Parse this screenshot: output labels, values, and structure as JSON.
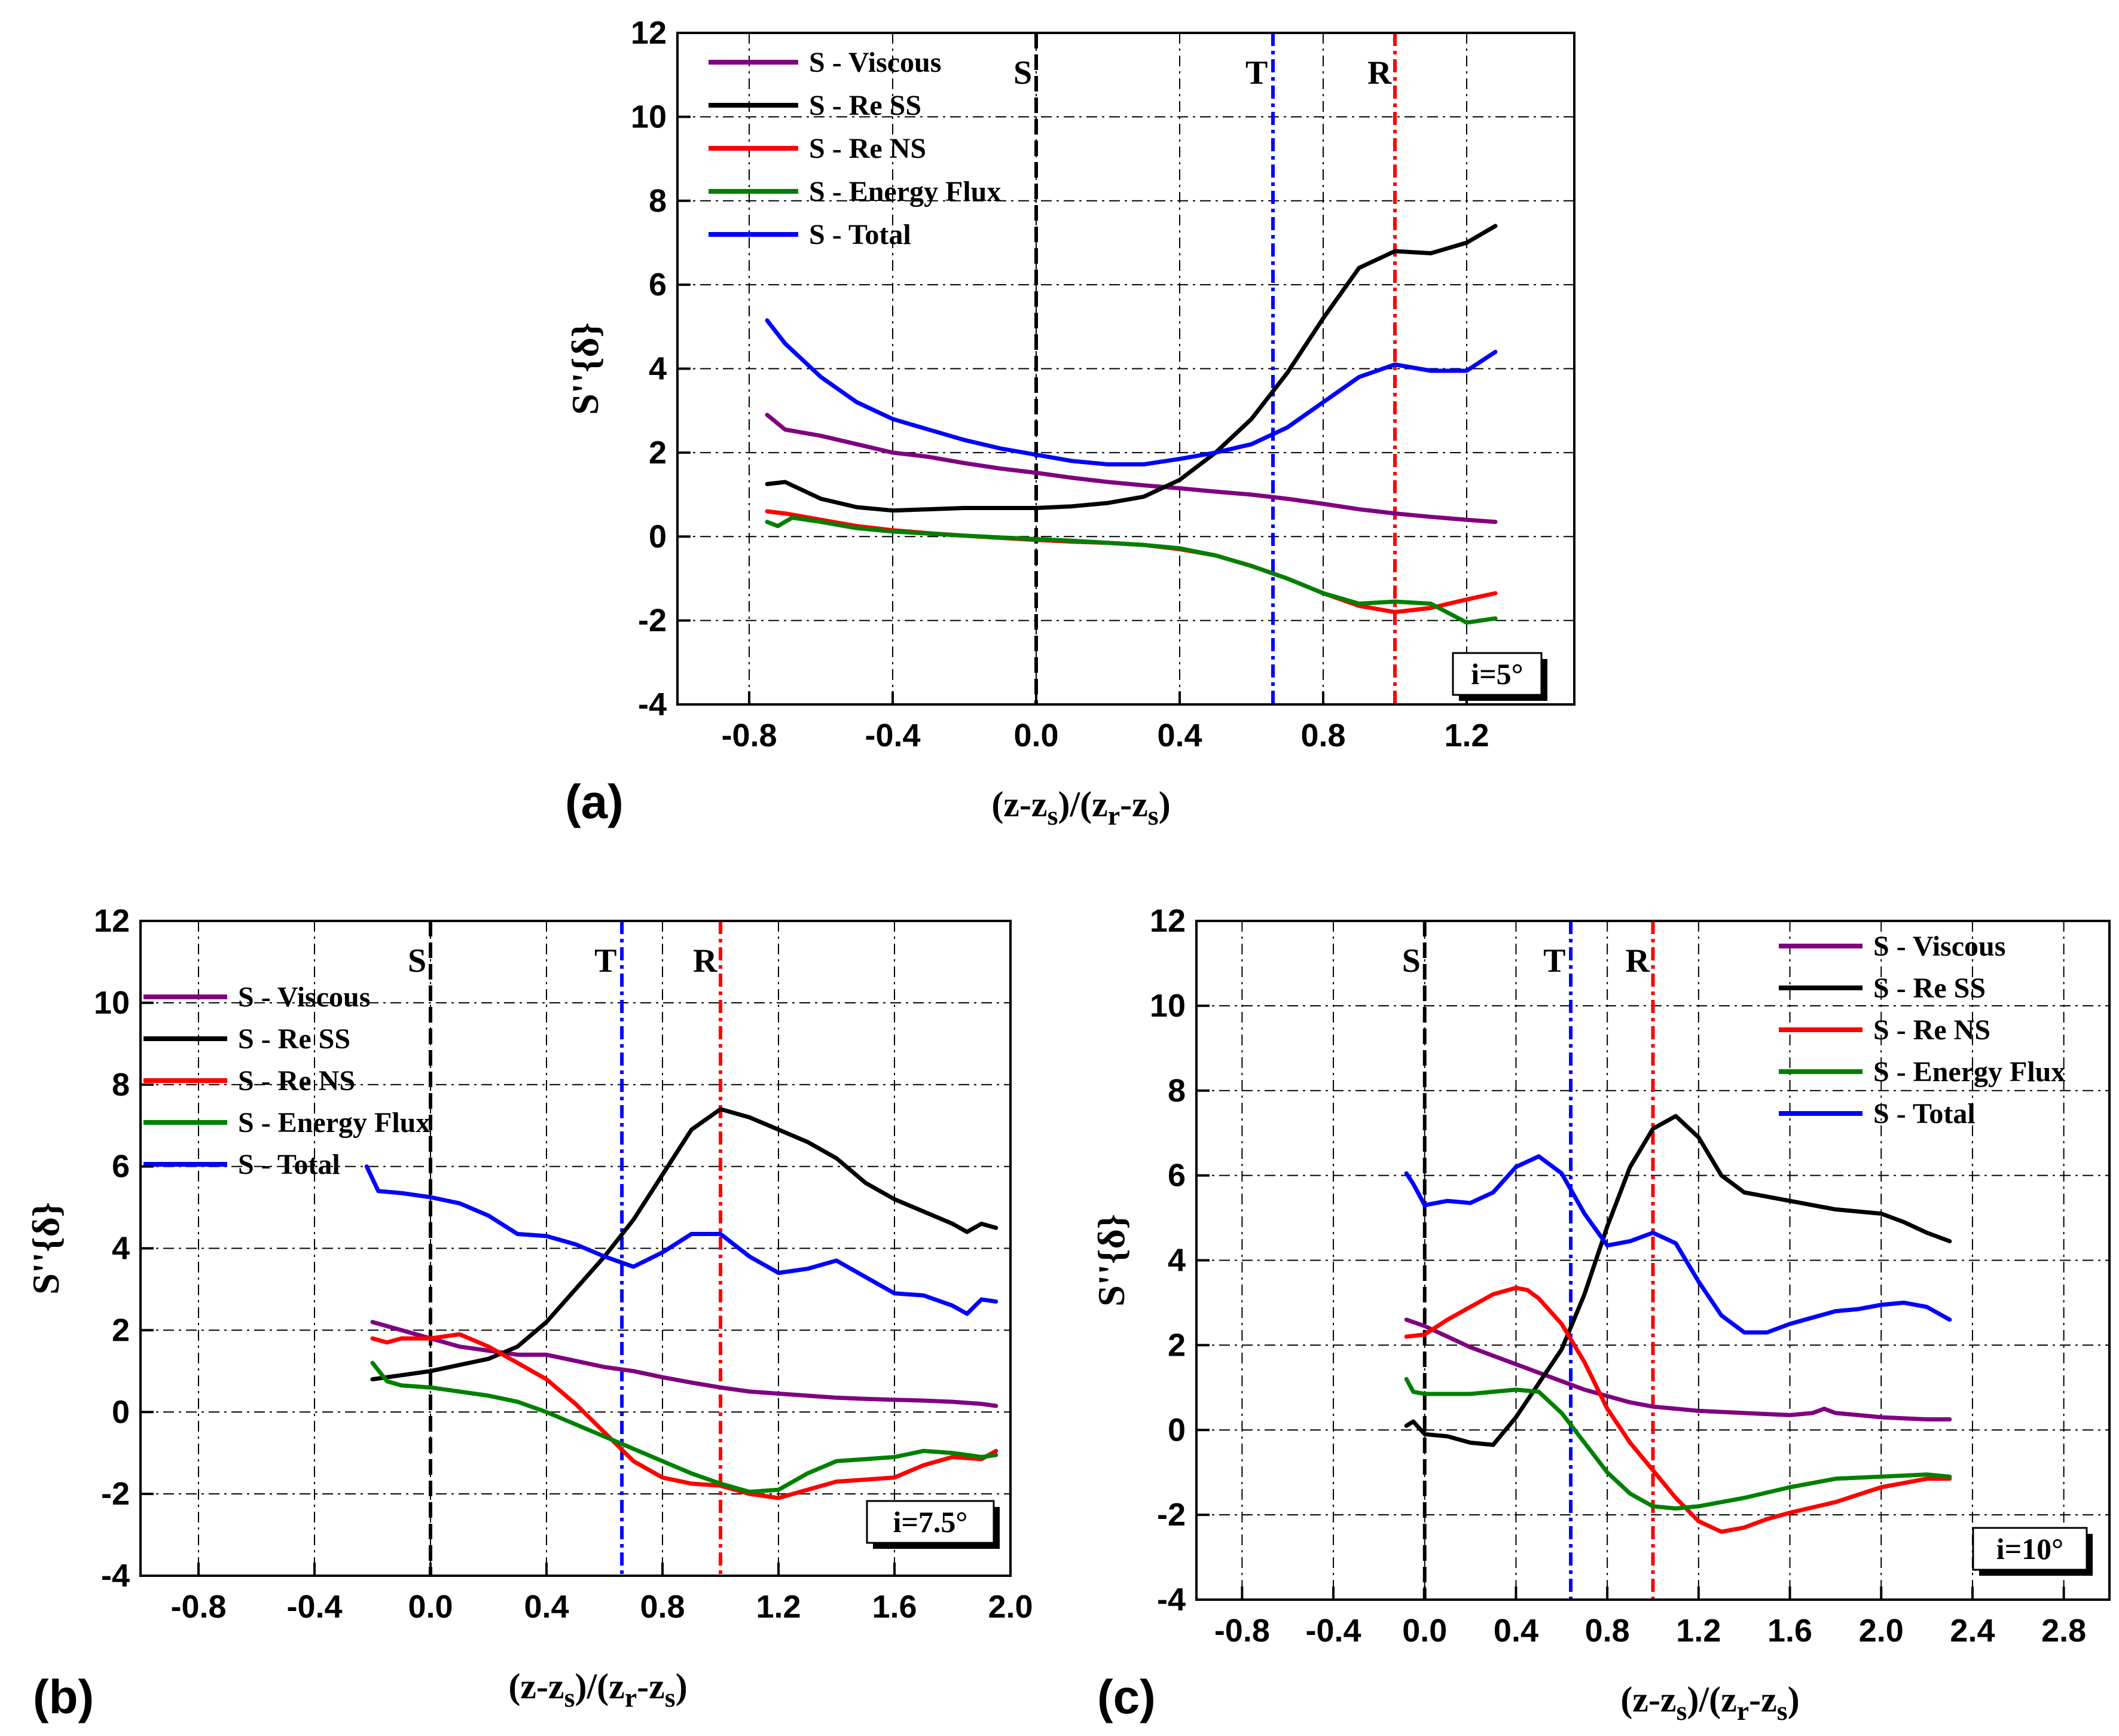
{
  "figure": {
    "colors": {
      "viscous": "#800080",
      "re_ss": "#000000",
      "re_ns": "#ff0000",
      "energy_flux": "#008000",
      "total": "#0000ff",
      "marker_s": "#000000",
      "marker_t": "#0000ff",
      "marker_r": "#ff0000"
    }
  },
  "chart_data": [
    {
      "panel_label": "(a)",
      "type": "line",
      "ylabel": "S''{δ}",
      "xlabel_parts": [
        "(z-z",
        "s",
        ")/(z",
        "r",
        "-z",
        "s",
        ")"
      ],
      "incidence": "i=5°",
      "xlim": [
        -1.0,
        1.5
      ],
      "ylim": [
        -4,
        12
      ],
      "xticks": [
        -0.8,
        -0.4,
        0.0,
        0.4,
        0.8,
        1.2
      ],
      "xtick_labels": [
        "-0.8",
        "-0.4",
        "0.0",
        "0.4",
        "0.8",
        "1.2"
      ],
      "yticks": [
        -4,
        -2,
        0,
        2,
        4,
        6,
        8,
        10,
        12
      ],
      "ytick_labels": [
        "-4",
        "-2",
        "0",
        "2",
        "4",
        "6",
        "8",
        "10",
        "12"
      ],
      "markers": [
        {
          "label": "S",
          "x": 0.0,
          "color_key": "marker_s"
        },
        {
          "label": "T",
          "x": 0.66,
          "color_key": "marker_t"
        },
        {
          "label": "R",
          "x": 1.0,
          "color_key": "marker_r"
        }
      ],
      "legend_position": "top-left",
      "series": [
        {
          "name": "S - Viscous",
          "color_key": "viscous",
          "x": [
            -0.75,
            -0.7,
            -0.6,
            -0.5,
            -0.4,
            -0.3,
            -0.2,
            -0.1,
            0.0,
            0.1,
            0.2,
            0.3,
            0.4,
            0.5,
            0.6,
            0.7,
            0.8,
            0.9,
            1.0,
            1.1,
            1.2,
            1.28
          ],
          "y": [
            2.9,
            2.55,
            2.4,
            2.2,
            2.0,
            1.9,
            1.75,
            1.62,
            1.52,
            1.4,
            1.3,
            1.22,
            1.15,
            1.07,
            1.0,
            0.9,
            0.78,
            0.65,
            0.55,
            0.47,
            0.4,
            0.35
          ]
        },
        {
          "name": "S - Re SS",
          "color_key": "re_ss",
          "x": [
            -0.75,
            -0.7,
            -0.6,
            -0.5,
            -0.4,
            -0.3,
            -0.2,
            -0.1,
            0.0,
            0.1,
            0.2,
            0.3,
            0.4,
            0.5,
            0.6,
            0.7,
            0.8,
            0.9,
            1.0,
            1.1,
            1.2,
            1.28
          ],
          "y": [
            1.25,
            1.3,
            0.9,
            0.7,
            0.62,
            0.65,
            0.68,
            0.68,
            0.68,
            0.72,
            0.8,
            0.95,
            1.35,
            2.0,
            2.8,
            3.9,
            5.2,
            6.4,
            6.8,
            6.75,
            7.0,
            7.4
          ]
        },
        {
          "name": "S - Re NS",
          "color_key": "re_ns",
          "x": [
            -0.75,
            -0.7,
            -0.6,
            -0.5,
            -0.4,
            -0.3,
            -0.2,
            -0.1,
            0.0,
            0.1,
            0.2,
            0.3,
            0.4,
            0.5,
            0.6,
            0.7,
            0.8,
            0.9,
            1.0,
            1.1,
            1.2,
            1.28
          ],
          "y": [
            0.6,
            0.55,
            0.4,
            0.25,
            0.15,
            0.08,
            0.02,
            -0.03,
            -0.08,
            -0.12,
            -0.15,
            -0.2,
            -0.3,
            -0.45,
            -0.7,
            -1.0,
            -1.35,
            -1.65,
            -1.8,
            -1.7,
            -1.5,
            -1.35
          ]
        },
        {
          "name": "S - Energy Flux",
          "color_key": "energy_flux",
          "x": [
            -0.75,
            -0.72,
            -0.68,
            -0.6,
            -0.5,
            -0.4,
            -0.3,
            -0.2,
            -0.1,
            0.0,
            0.1,
            0.2,
            0.3,
            0.4,
            0.5,
            0.6,
            0.7,
            0.8,
            0.9,
            1.0,
            1.1,
            1.2,
            1.28
          ],
          "y": [
            0.35,
            0.25,
            0.45,
            0.35,
            0.2,
            0.12,
            0.07,
            0.02,
            -0.02,
            -0.06,
            -0.1,
            -0.15,
            -0.2,
            -0.28,
            -0.45,
            -0.7,
            -1.0,
            -1.35,
            -1.6,
            -1.55,
            -1.6,
            -2.05,
            -1.95
          ]
        },
        {
          "name": "S - Total",
          "color_key": "total",
          "x": [
            -0.75,
            -0.7,
            -0.6,
            -0.5,
            -0.4,
            -0.3,
            -0.2,
            -0.1,
            0.0,
            0.1,
            0.2,
            0.3,
            0.4,
            0.5,
            0.6,
            0.7,
            0.8,
            0.9,
            1.0,
            1.1,
            1.2,
            1.28
          ],
          "y": [
            5.15,
            4.6,
            3.8,
            3.2,
            2.8,
            2.55,
            2.3,
            2.1,
            1.95,
            1.8,
            1.72,
            1.72,
            1.85,
            2.0,
            2.2,
            2.6,
            3.2,
            3.8,
            4.1,
            3.95,
            3.95,
            4.4
          ]
        }
      ]
    },
    {
      "panel_label": "(b)",
      "type": "line",
      "ylabel": "S''{δ}",
      "xlabel_parts": [
        "(z-z",
        "s",
        ")/(z",
        "r",
        "-z",
        "s",
        ")"
      ],
      "incidence": "i=7.5°",
      "xlim": [
        -1.0,
        2.0
      ],
      "ylim": [
        -4,
        12
      ],
      "xticks": [
        -0.8,
        -0.4,
        0.0,
        0.4,
        0.8,
        1.2,
        1.6,
        2.0
      ],
      "xtick_labels": [
        "-0.8",
        "-0.4",
        "0.0",
        "0.4",
        "0.8",
        "1.2",
        "1.6",
        "2.0"
      ],
      "yticks": [
        -4,
        -2,
        0,
        2,
        4,
        6,
        8,
        10,
        12
      ],
      "ytick_labels": [
        "-4",
        "-2",
        "0",
        "2",
        "4",
        "6",
        "8",
        "10",
        "12"
      ],
      "markers": [
        {
          "label": "S",
          "x": 0.0,
          "color_key": "marker_s"
        },
        {
          "label": "T",
          "x": 0.66,
          "color_key": "marker_t"
        },
        {
          "label": "R",
          "x": 1.0,
          "color_key": "marker_r"
        }
      ],
      "legend_position": "center-left",
      "series": [
        {
          "name": "S - Viscous",
          "color_key": "viscous",
          "x": [
            -0.2,
            -0.1,
            0.0,
            0.1,
            0.2,
            0.3,
            0.4,
            0.5,
            0.6,
            0.7,
            0.8,
            0.9,
            1.0,
            1.1,
            1.2,
            1.3,
            1.4,
            1.5,
            1.6,
            1.7,
            1.8,
            1.9,
            1.95
          ],
          "y": [
            2.2,
            2.0,
            1.8,
            1.6,
            1.5,
            1.4,
            1.4,
            1.25,
            1.1,
            1.0,
            0.85,
            0.72,
            0.6,
            0.5,
            0.45,
            0.4,
            0.35,
            0.32,
            0.3,
            0.28,
            0.25,
            0.2,
            0.15
          ]
        },
        {
          "name": "S - Re SS",
          "color_key": "re_ss",
          "x": [
            -0.2,
            -0.1,
            0.0,
            0.1,
            0.2,
            0.3,
            0.4,
            0.5,
            0.6,
            0.7,
            0.8,
            0.9,
            1.0,
            1.1,
            1.2,
            1.3,
            1.4,
            1.5,
            1.6,
            1.7,
            1.8,
            1.85,
            1.9,
            1.95
          ],
          "y": [
            0.8,
            0.9,
            1.0,
            1.15,
            1.3,
            1.6,
            2.2,
            3.0,
            3.8,
            4.7,
            5.8,
            6.9,
            7.4,
            7.2,
            6.9,
            6.6,
            6.2,
            5.6,
            5.2,
            4.9,
            4.6,
            4.4,
            4.6,
            4.5
          ]
        },
        {
          "name": "S - Re NS",
          "color_key": "re_ns",
          "x": [
            -0.2,
            -0.15,
            -0.1,
            0.0,
            0.1,
            0.2,
            0.3,
            0.4,
            0.5,
            0.6,
            0.7,
            0.8,
            0.9,
            1.0,
            1.1,
            1.2,
            1.3,
            1.4,
            1.5,
            1.6,
            1.7,
            1.8,
            1.9,
            1.95
          ],
          "y": [
            1.8,
            1.7,
            1.8,
            1.8,
            1.9,
            1.6,
            1.2,
            0.8,
            0.2,
            -0.5,
            -1.2,
            -1.6,
            -1.75,
            -1.8,
            -2.0,
            -2.1,
            -1.9,
            -1.7,
            -1.65,
            -1.6,
            -1.3,
            -1.1,
            -1.15,
            -0.95
          ]
        },
        {
          "name": "S - Energy Flux",
          "color_key": "energy_flux",
          "x": [
            -0.2,
            -0.15,
            -0.1,
            0.0,
            0.1,
            0.2,
            0.3,
            0.4,
            0.5,
            0.6,
            0.7,
            0.8,
            0.9,
            1.0,
            1.1,
            1.2,
            1.3,
            1.4,
            1.5,
            1.6,
            1.7,
            1.8,
            1.9,
            1.95
          ],
          "y": [
            1.2,
            0.75,
            0.65,
            0.6,
            0.5,
            0.4,
            0.25,
            0.0,
            -0.3,
            -0.6,
            -0.9,
            -1.2,
            -1.5,
            -1.75,
            -1.95,
            -1.9,
            -1.5,
            -1.2,
            -1.15,
            -1.1,
            -0.95,
            -1.0,
            -1.1,
            -1.05
          ]
        },
        {
          "name": "S - Total",
          "color_key": "total",
          "x": [
            -0.22,
            -0.18,
            -0.1,
            0.0,
            0.1,
            0.2,
            0.3,
            0.4,
            0.5,
            0.6,
            0.7,
            0.8,
            0.9,
            1.0,
            1.1,
            1.2,
            1.3,
            1.4,
            1.5,
            1.6,
            1.7,
            1.8,
            1.85,
            1.9,
            1.95
          ],
          "y": [
            6.0,
            5.4,
            5.35,
            5.25,
            5.1,
            4.8,
            4.35,
            4.3,
            4.1,
            3.8,
            3.55,
            3.9,
            4.35,
            4.35,
            3.8,
            3.4,
            3.5,
            3.7,
            3.3,
            2.9,
            2.85,
            2.6,
            2.4,
            2.75,
            2.7
          ]
        }
      ]
    },
    {
      "panel_label": "(c)",
      "type": "line",
      "ylabel": "S''{δ}",
      "xlabel_parts": [
        "(z-z",
        "s",
        ")/(z",
        "r",
        "-z",
        "s",
        ")"
      ],
      "incidence": "i=10°",
      "xlim": [
        -1.0,
        3.0
      ],
      "ylim": [
        -4,
        12
      ],
      "xticks": [
        -0.8,
        -0.4,
        0.0,
        0.4,
        0.8,
        1.2,
        1.6,
        2.0,
        2.4,
        2.8
      ],
      "xtick_labels": [
        "-0.8",
        "-0.4",
        "0.0",
        "0.4",
        "0.8",
        "1.2",
        "1.6",
        "2.0",
        "2.4",
        "2.8"
      ],
      "yticks": [
        -4,
        -2,
        0,
        2,
        4,
        6,
        8,
        10,
        12
      ],
      "ytick_labels": [
        "-4",
        "-2",
        "0",
        "2",
        "4",
        "6",
        "8",
        "10",
        "12"
      ],
      "markers": [
        {
          "label": "S",
          "x": 0.0,
          "color_key": "marker_s"
        },
        {
          "label": "T",
          "x": 0.64,
          "color_key": "marker_t"
        },
        {
          "label": "R",
          "x": 1.0,
          "color_key": "marker_r"
        }
      ],
      "legend_position": "top-right",
      "series": [
        {
          "name": "S - Viscous",
          "color_key": "viscous",
          "x": [
            -0.08,
            0.0,
            0.1,
            0.2,
            0.3,
            0.4,
            0.5,
            0.6,
            0.7,
            0.8,
            0.9,
            1.0,
            1.2,
            1.4,
            1.6,
            1.7,
            1.75,
            1.8,
            1.9,
            2.0,
            2.2,
            2.3
          ],
          "y": [
            2.6,
            2.45,
            2.2,
            1.95,
            1.75,
            1.55,
            1.35,
            1.15,
            0.95,
            0.8,
            0.65,
            0.55,
            0.45,
            0.4,
            0.35,
            0.4,
            0.5,
            0.4,
            0.35,
            0.3,
            0.25,
            0.25
          ]
        },
        {
          "name": "S - Re SS",
          "color_key": "re_ss",
          "x": [
            -0.08,
            -0.05,
            0.0,
            0.1,
            0.2,
            0.3,
            0.4,
            0.5,
            0.6,
            0.7,
            0.8,
            0.9,
            1.0,
            1.1,
            1.2,
            1.3,
            1.4,
            1.6,
            1.8,
            2.0,
            2.1,
            2.2,
            2.3
          ],
          "y": [
            0.1,
            0.2,
            -0.1,
            -0.15,
            -0.3,
            -0.35,
            0.3,
            1.1,
            1.9,
            3.2,
            4.8,
            6.2,
            7.1,
            7.4,
            6.9,
            6.0,
            5.6,
            5.4,
            5.2,
            5.1,
            4.9,
            4.65,
            4.45
          ]
        },
        {
          "name": "S - Re NS",
          "color_key": "re_ns",
          "x": [
            -0.08,
            0.0,
            0.1,
            0.2,
            0.3,
            0.4,
            0.45,
            0.5,
            0.6,
            0.7,
            0.8,
            0.9,
            1.0,
            1.1,
            1.2,
            1.3,
            1.4,
            1.5,
            1.6,
            1.8,
            2.0,
            2.2,
            2.3
          ],
          "y": [
            2.2,
            2.25,
            2.6,
            2.9,
            3.2,
            3.35,
            3.3,
            3.1,
            2.5,
            1.6,
            0.5,
            -0.3,
            -0.95,
            -1.6,
            -2.15,
            -2.4,
            -2.3,
            -2.1,
            -1.95,
            -1.7,
            -1.35,
            -1.15,
            -1.15
          ]
        },
        {
          "name": "S - Energy Flux",
          "color_key": "energy_flux",
          "x": [
            -0.08,
            -0.05,
            0.0,
            0.1,
            0.2,
            0.3,
            0.4,
            0.5,
            0.6,
            0.7,
            0.8,
            0.9,
            1.0,
            1.1,
            1.2,
            1.3,
            1.4,
            1.6,
            1.8,
            2.0,
            2.2,
            2.3
          ],
          "y": [
            1.2,
            0.9,
            0.85,
            0.85,
            0.85,
            0.9,
            0.95,
            0.9,
            0.4,
            -0.3,
            -1.0,
            -1.5,
            -1.8,
            -1.85,
            -1.8,
            -1.7,
            -1.6,
            -1.35,
            -1.15,
            -1.1,
            -1.05,
            -1.1
          ]
        },
        {
          "name": "S - Total",
          "color_key": "total",
          "x": [
            -0.08,
            -0.05,
            0.0,
            0.1,
            0.2,
            0.3,
            0.4,
            0.5,
            0.6,
            0.7,
            0.8,
            0.9,
            1.0,
            1.1,
            1.2,
            1.3,
            1.4,
            1.5,
            1.6,
            1.8,
            1.9,
            2.0,
            2.1,
            2.2,
            2.3
          ],
          "y": [
            6.05,
            5.8,
            5.3,
            5.4,
            5.35,
            5.6,
            6.2,
            6.45,
            6.05,
            5.1,
            4.35,
            4.45,
            4.65,
            4.4,
            3.5,
            2.7,
            2.3,
            2.3,
            2.5,
            2.8,
            2.85,
            2.95,
            3.0,
            2.9,
            2.6
          ]
        }
      ]
    }
  ]
}
